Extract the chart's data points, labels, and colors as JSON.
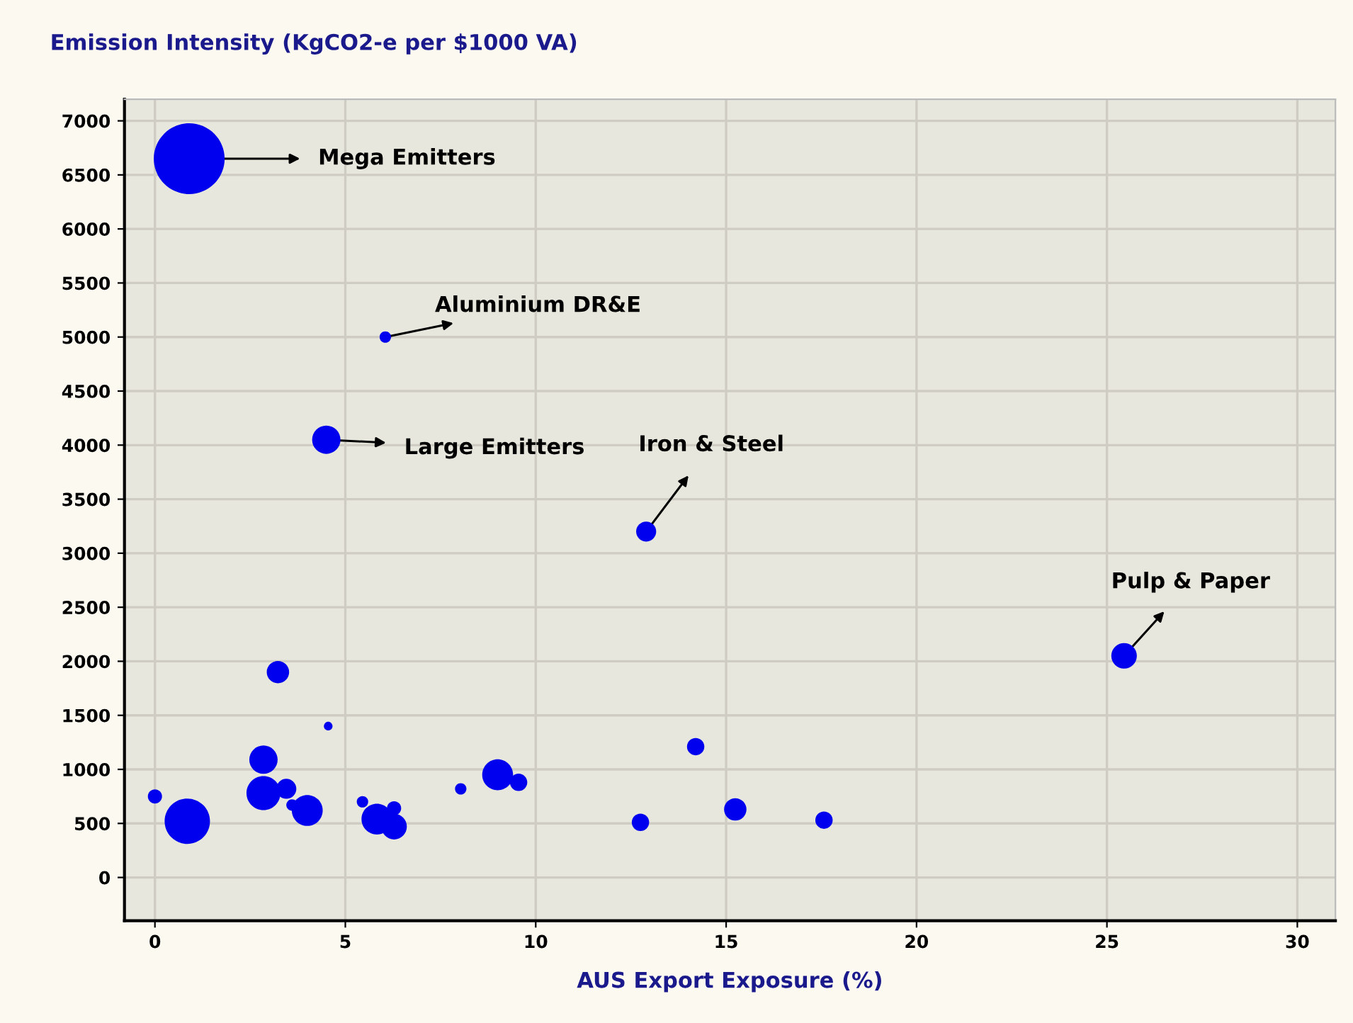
{
  "chart_data": {
    "type": "bubble",
    "ylabel": "Emission Intensity (KgCO2-e per $1000 VA)",
    "xlabel": "AUS Export Exposure (%)",
    "series": [
      {
        "color": "#0000ee",
        "x": [
          0.9,
          6.05,
          4.5,
          12.9,
          25.45,
          4.55,
          0,
          0.85,
          2.85,
          3.23,
          2.85,
          3.45,
          3.6,
          4.0,
          5.45,
          5.83,
          6.28,
          6.28,
          8.03,
          9.0,
          9.55,
          14.2,
          12.75,
          15.24,
          17.57
        ],
        "values": [
          6650,
          5000,
          4050,
          3200,
          2050,
          1400,
          750,
          520,
          1090,
          1900,
          780,
          820,
          670,
          620,
          700,
          540,
          640,
          470,
          820,
          950,
          880,
          1210,
          510,
          630,
          530
        ],
        "sizes": [
          1,
          0.026,
          0.16,
          0.08,
          0.13,
          0.015,
          0.04,
          0.41,
          0.16,
          0.1,
          0.23,
          0.08,
          0.026,
          0.19,
          0.026,
          0.19,
          0.04,
          0.13,
          0.026,
          0.19,
          0.06,
          0.06,
          0.06,
          0.1,
          0.06
        ]
      }
    ],
    "annotations": [
      {
        "text": "Mega Emitters",
        "x": 0.9,
        "y": 6650
      },
      {
        "text": "Aluminium DR&E",
        "x": 6.05,
        "y": 5000
      },
      {
        "text": "Large Emitters",
        "x": 4.5,
        "y": 4050
      },
      {
        "text": "Iron & Steel",
        "x": 12.9,
        "y": 3200
      },
      {
        "text": "Pulp & Paper",
        "x": 25.45,
        "y": 2050
      }
    ],
    "xlim": [
      -0.8,
      31
    ],
    "ylim": [
      -400,
      7200
    ],
    "xticks": [
      0,
      5,
      10,
      15,
      20,
      25,
      30
    ],
    "yticks": [
      0,
      500,
      1000,
      1500,
      2000,
      2500,
      3000,
      3500,
      4000,
      4500,
      5000,
      5500,
      6000,
      6500,
      7000
    ],
    "grid": true
  }
}
